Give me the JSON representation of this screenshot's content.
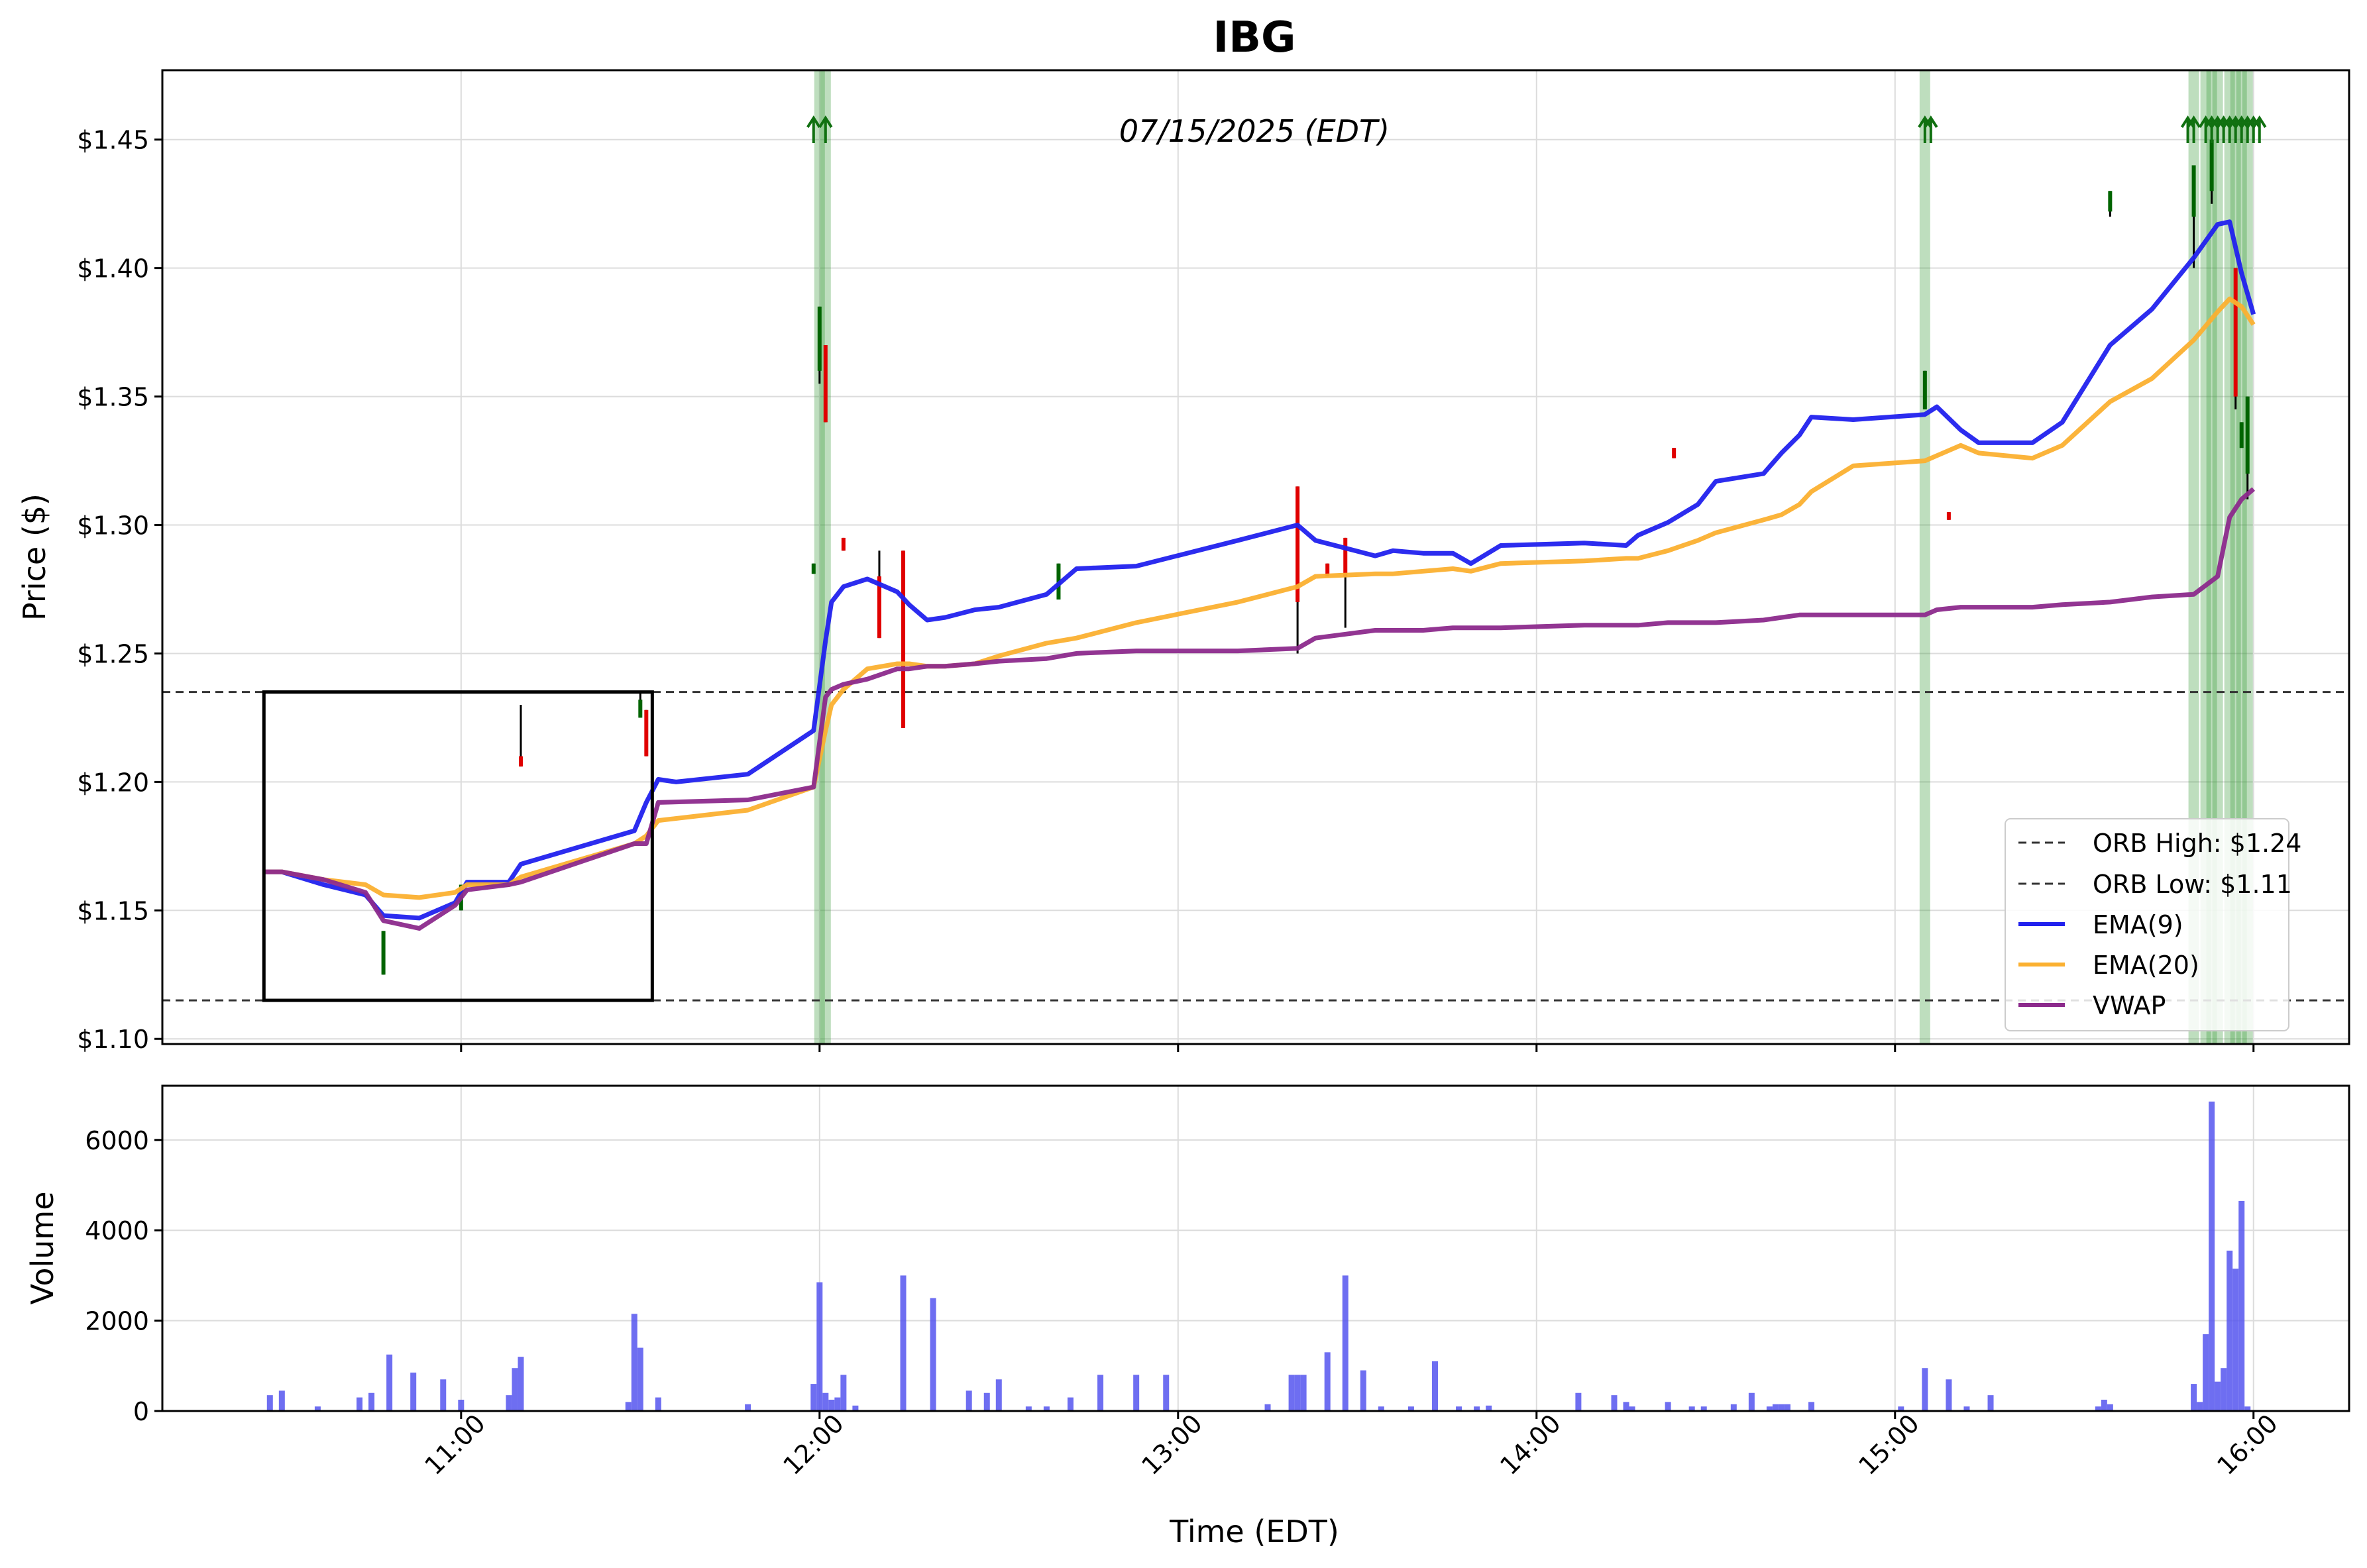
{
  "chart_data": {
    "type": "line",
    "title": "IBG",
    "subtitle": "07/15/2025 (EDT)",
    "xlabel": "Time (EDT)",
    "x_ticks": [
      "11:00",
      "12:00",
      "13:00",
      "14:00",
      "15:00",
      "16:00"
    ],
    "xlim": [
      "10:10",
      "16:16"
    ],
    "grid": true,
    "legend_position": "lower-right",
    "price_panel": {
      "ylabel": "Price ($)",
      "ylim": [
        1.098,
        1.477
      ],
      "y_ticks": [
        "$1.10",
        "$1.15",
        "$1.20",
        "$1.25",
        "$1.30",
        "$1.35",
        "$1.40",
        "$1.45"
      ],
      "y_tick_values": [
        1.1,
        1.15,
        1.2,
        1.25,
        1.3,
        1.35,
        1.4,
        1.45
      ],
      "reference_lines": [
        {
          "name": "ORB High: $1.24",
          "value": 1.235,
          "style": "dashed",
          "color": "#333333"
        },
        {
          "name": "ORB Low: $1.11",
          "value": 1.115,
          "style": "dashed",
          "color": "#333333"
        }
      ],
      "orb_box": {
        "x_start": "10:27",
        "x_end": "11:32",
        "y_low": 1.115,
        "y_high": 1.235
      },
      "series": [
        {
          "name": "EMA(9)",
          "color": "#2121ee",
          "x": [
            "10:27",
            "10:30",
            "10:37",
            "10:44",
            "10:47",
            "10:53",
            "10:59",
            "11:01",
            "11:08",
            "11:10",
            "11:29",
            "11:31",
            "11:33",
            "11:36",
            "11:48",
            "11:59",
            "12:01",
            "12:02",
            "12:04",
            "12:08",
            "12:13",
            "12:15",
            "12:18",
            "12:21",
            "12:26",
            "12:30",
            "12:38",
            "12:43",
            "12:53",
            "13:10",
            "13:20",
            "13:23",
            "13:33",
            "13:36",
            "13:41",
            "13:46",
            "13:49",
            "13:54",
            "14:08",
            "14:15",
            "14:17",
            "14:22",
            "14:27",
            "14:30",
            "14:38",
            "14:41",
            "14:44",
            "14:46",
            "14:53",
            "15:05",
            "15:07",
            "15:11",
            "15:14",
            "15:23",
            "15:28",
            "15:36",
            "15:43",
            "15:50",
            "15:54",
            "15:56",
            "15:58",
            "16:00"
          ],
          "values": [
            1.165,
            1.165,
            1.16,
            1.156,
            1.148,
            1.147,
            1.153,
            1.161,
            1.161,
            1.168,
            1.181,
            1.192,
            1.201,
            1.2,
            1.203,
            1.22,
            1.255,
            1.27,
            1.276,
            1.279,
            1.274,
            1.269,
            1.263,
            1.264,
            1.267,
            1.268,
            1.273,
            1.283,
            1.284,
            1.294,
            1.3,
            1.294,
            1.288,
            1.29,
            1.289,
            1.289,
            1.285,
            1.292,
            1.293,
            1.292,
            1.296,
            1.301,
            1.308,
            1.317,
            1.32,
            1.328,
            1.335,
            1.342,
            1.341,
            1.343,
            1.346,
            1.337,
            1.332,
            1.332,
            1.34,
            1.37,
            1.384,
            1.404,
            1.417,
            1.418,
            1.398,
            1.382
          ]
        },
        {
          "name": "EMA(20)",
          "color": "#fbb030",
          "x": [
            "10:27",
            "10:30",
            "10:37",
            "10:44",
            "10:47",
            "10:53",
            "10:59",
            "11:01",
            "11:08",
            "11:10",
            "11:29",
            "11:31",
            "11:33",
            "11:48",
            "11:59",
            "12:01",
            "12:02",
            "12:04",
            "12:08",
            "12:13",
            "12:15",
            "12:18",
            "12:21",
            "12:26",
            "12:30",
            "12:38",
            "12:43",
            "12:53",
            "13:10",
            "13:20",
            "13:23",
            "13:33",
            "13:36",
            "13:41",
            "13:46",
            "13:49",
            "13:54",
            "14:08",
            "14:15",
            "14:17",
            "14:22",
            "14:27",
            "14:30",
            "14:38",
            "14:41",
            "14:44",
            "14:46",
            "14:53",
            "15:05",
            "15:07",
            "15:11",
            "15:14",
            "15:23",
            "15:28",
            "15:36",
            "15:43",
            "15:50",
            "15:54",
            "15:56",
            "15:58",
            "16:00"
          ],
          "values": [
            1.165,
            1.165,
            1.162,
            1.16,
            1.156,
            1.155,
            1.157,
            1.16,
            1.16,
            1.163,
            1.176,
            1.179,
            1.185,
            1.189,
            1.198,
            1.22,
            1.23,
            1.236,
            1.244,
            1.246,
            1.246,
            1.245,
            1.245,
            1.246,
            1.249,
            1.254,
            1.256,
            1.262,
            1.27,
            1.276,
            1.28,
            1.281,
            1.281,
            1.282,
            1.283,
            1.282,
            1.285,
            1.286,
            1.287,
            1.287,
            1.29,
            1.294,
            1.297,
            1.302,
            1.304,
            1.308,
            1.313,
            1.323,
            1.325,
            1.327,
            1.331,
            1.328,
            1.326,
            1.331,
            1.348,
            1.357,
            1.372,
            1.383,
            1.388,
            1.385,
            1.378
          ]
        },
        {
          "name": "VWAP",
          "color": "#8c2a8c",
          "x": [
            "10:27",
            "10:30",
            "10:37",
            "10:44",
            "10:47",
            "10:53",
            "10:59",
            "11:01",
            "11:08",
            "11:10",
            "11:29",
            "11:31",
            "11:33",
            "11:48",
            "11:59",
            "12:01",
            "12:02",
            "12:04",
            "12:08",
            "12:13",
            "12:15",
            "12:18",
            "12:21",
            "12:26",
            "12:30",
            "12:38",
            "12:43",
            "12:53",
            "13:10",
            "13:20",
            "13:23",
            "13:33",
            "13:36",
            "13:41",
            "13:46",
            "13:49",
            "13:54",
            "14:08",
            "14:15",
            "14:17",
            "14:22",
            "14:27",
            "14:30",
            "14:38",
            "14:41",
            "14:44",
            "14:46",
            "14:53",
            "15:05",
            "15:07",
            "15:11",
            "15:14",
            "15:23",
            "15:28",
            "15:36",
            "15:43",
            "15:50",
            "15:54",
            "15:56",
            "15:58",
            "16:00"
          ],
          "values": [
            1.165,
            1.165,
            1.162,
            1.157,
            1.146,
            1.143,
            1.152,
            1.158,
            1.16,
            1.161,
            1.176,
            1.176,
            1.192,
            1.193,
            1.198,
            1.233,
            1.236,
            1.238,
            1.24,
            1.244,
            1.244,
            1.245,
            1.245,
            1.246,
            1.247,
            1.248,
            1.25,
            1.251,
            1.251,
            1.252,
            1.256,
            1.259,
            1.259,
            1.259,
            1.26,
            1.26,
            1.26,
            1.261,
            1.261,
            1.261,
            1.262,
            1.262,
            1.262,
            1.263,
            1.264,
            1.265,
            1.265,
            1.265,
            1.265,
            1.267,
            1.268,
            1.268,
            1.268,
            1.269,
            1.27,
            1.272,
            1.273,
            1.28,
            1.303,
            1.31,
            1.314
          ]
        }
      ],
      "candles": [
        {
          "x": "10:47",
          "open": 1.142,
          "close": 1.125,
          "high": 1.142,
          "low": 1.125,
          "color": "#006400"
        },
        {
          "x": "11:00",
          "open": 1.16,
          "close": 1.15,
          "high": 1.16,
          "low": 1.15,
          "color": "#006400"
        },
        {
          "x": "11:10",
          "open": 1.21,
          "close": 1.206,
          "high": 1.23,
          "low": 1.206,
          "color": "#e00000"
        },
        {
          "x": "11:30",
          "open": 1.225,
          "close": 1.232,
          "high": 1.235,
          "low": 1.225,
          "color": "#006400"
        },
        {
          "x": "11:31",
          "open": 1.228,
          "close": 1.21,
          "high": 1.228,
          "low": 1.21,
          "color": "#e00000"
        },
        {
          "x": "11:59",
          "open": 1.281,
          "close": 1.285,
          "high": 1.285,
          "low": 1.281,
          "color": "#006400"
        },
        {
          "x": "12:00",
          "open": 1.36,
          "close": 1.385,
          "high": 1.385,
          "low": 1.355,
          "color": "#006400"
        },
        {
          "x": "12:01",
          "open": 1.37,
          "close": 1.34,
          "high": 1.37,
          "low": 1.34,
          "color": "#e00000"
        },
        {
          "x": "12:04",
          "open": 1.295,
          "close": 1.29,
          "high": 1.295,
          "low": 1.29,
          "color": "#e00000"
        },
        {
          "x": "12:10",
          "open": 1.28,
          "close": 1.256,
          "high": 1.29,
          "low": 1.256,
          "color": "#e00000"
        },
        {
          "x": "12:14",
          "open": 1.29,
          "close": 1.221,
          "high": 1.29,
          "low": 1.221,
          "color": "#e00000"
        },
        {
          "x": "12:40",
          "open": 1.285,
          "close": 1.271,
          "high": 1.285,
          "low": 1.271,
          "color": "#006400"
        },
        {
          "x": "13:20",
          "open": 1.315,
          "close": 1.27,
          "high": 1.315,
          "low": 1.25,
          "color": "#e00000"
        },
        {
          "x": "13:25",
          "open": 1.285,
          "close": 1.28,
          "high": 1.285,
          "low": 1.28,
          "color": "#e00000"
        },
        {
          "x": "13:28",
          "open": 1.295,
          "close": 1.28,
          "high": 1.295,
          "low": 1.26,
          "color": "#e00000"
        },
        {
          "x": "14:23",
          "open": 1.33,
          "close": 1.326,
          "high": 1.33,
          "low": 1.326,
          "color": "#e00000"
        },
        {
          "x": "15:05",
          "open": 1.36,
          "close": 1.345,
          "high": 1.36,
          "low": 1.345,
          "color": "#006400"
        },
        {
          "x": "15:09",
          "open": 1.305,
          "close": 1.302,
          "high": 1.305,
          "low": 1.302,
          "color": "#e00000"
        },
        {
          "x": "15:36",
          "open": 1.422,
          "close": 1.43,
          "high": 1.43,
          "low": 1.42,
          "color": "#006400"
        },
        {
          "x": "15:50",
          "open": 1.42,
          "close": 1.44,
          "high": 1.44,
          "low": 1.4,
          "color": "#006400"
        },
        {
          "x": "15:53",
          "open": 1.43,
          "close": 1.45,
          "high": 1.45,
          "low": 1.425,
          "color": "#006400"
        },
        {
          "x": "15:57",
          "open": 1.4,
          "close": 1.35,
          "high": 1.4,
          "low": 1.345,
          "color": "#e00000"
        },
        {
          "x": "15:58",
          "open": 1.33,
          "close": 1.34,
          "high": 1.34,
          "low": 1.33,
          "color": "#006400"
        },
        {
          "x": "15:59",
          "open": 1.32,
          "close": 1.35,
          "high": 1.35,
          "low": 1.31,
          "color": "#006400"
        }
      ],
      "signal_bands": [
        "12:00",
        "12:01",
        "15:05",
        "15:50",
        "15:52",
        "15:53",
        "15:54",
        "15:56",
        "15:57",
        "15:58",
        "15:59"
      ],
      "signal_arrows": [
        "11:59",
        "12:01",
        "15:05",
        "15:06",
        "15:49",
        "15:50",
        "15:52",
        "15:53",
        "15:54",
        "15:55",
        "15:56",
        "15:57",
        "15:58",
        "15:59",
        "16:00",
        "16:01"
      ]
    },
    "volume_panel": {
      "ylabel": "Volume",
      "ylim": [
        0,
        7200
      ],
      "y_ticks": [
        "0",
        "2000",
        "4000",
        "6000"
      ],
      "y_tick_values": [
        0,
        2000,
        4000,
        6000
      ],
      "bar_color": "#5555ee",
      "bars": {
        "x": [
          "10:28",
          "10:30",
          "10:36",
          "10:43",
          "10:45",
          "10:48",
          "10:52",
          "10:57",
          "11:00",
          "11:08",
          "11:09",
          "11:10",
          "11:28",
          "11:29",
          "11:30",
          "11:33",
          "11:48",
          "11:59",
          "12:00",
          "12:01",
          "12:02",
          "12:03",
          "12:04",
          "12:06",
          "12:14",
          "12:19",
          "12:25",
          "12:28",
          "12:30",
          "12:35",
          "12:38",
          "12:42",
          "12:47",
          "12:53",
          "12:58",
          "13:15",
          "13:19",
          "13:20",
          "13:21",
          "13:25",
          "13:28",
          "13:31",
          "13:34",
          "13:39",
          "13:43",
          "13:47",
          "13:50",
          "13:52",
          "14:07",
          "14:13",
          "14:15",
          "14:16",
          "14:22",
          "14:26",
          "14:28",
          "14:33",
          "14:36",
          "14:39",
          "14:40",
          "14:41",
          "14:42",
          "14:46",
          "15:01",
          "15:05",
          "15:09",
          "15:12",
          "15:16",
          "15:34",
          "15:35",
          "15:36",
          "15:50",
          "15:51",
          "15:52",
          "15:53",
          "15:54",
          "15:55",
          "15:56",
          "15:57",
          "15:58",
          "15:59"
        ],
        "values": [
          350,
          450,
          100,
          300,
          400,
          1250,
          850,
          700,
          250,
          350,
          950,
          1200,
          200,
          2150,
          1400,
          300,
          150,
          600,
          2850,
          400,
          250,
          300,
          800,
          120,
          3000,
          2500,
          450,
          400,
          700,
          100,
          100,
          300,
          800,
          800,
          800,
          150,
          800,
          800,
          800,
          1300,
          3000,
          900,
          100,
          100,
          1100,
          100,
          100,
          120,
          400,
          350,
          200,
          100,
          200,
          100,
          100,
          150,
          400,
          100,
          150,
          150,
          150,
          200,
          100,
          950,
          700,
          100,
          350,
          100,
          250,
          150,
          600,
          200,
          1700,
          6850,
          650,
          950,
          3550,
          3150,
          4650,
          100
        ]
      }
    }
  }
}
